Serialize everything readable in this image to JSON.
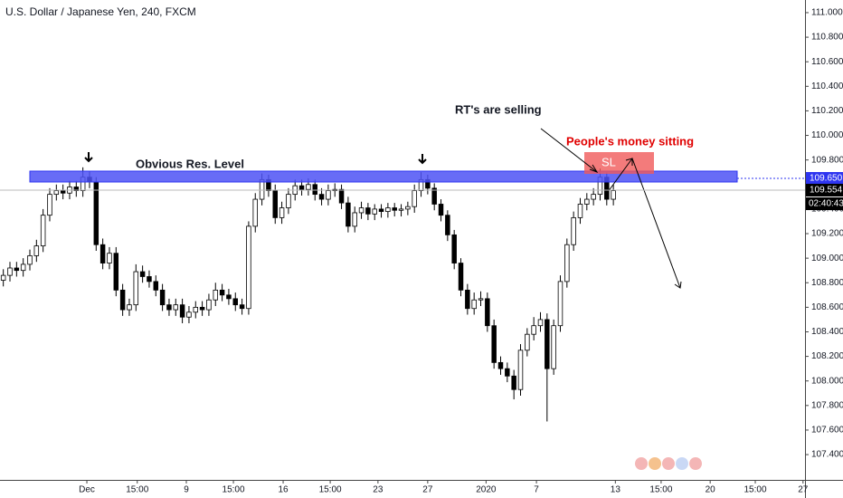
{
  "chart_data": {
    "type": "candlestick",
    "title": "U.S. Dollar / Japanese Yen, 240, FXCM",
    "x": [
      0,
      1,
      2,
      3,
      4,
      5,
      6,
      7,
      8,
      9,
      10,
      11,
      12,
      13,
      14,
      15,
      16,
      17,
      18,
      19,
      20,
      21,
      22,
      23,
      24,
      25,
      26,
      27,
      28,
      29,
      30,
      31,
      32,
      33,
      34,
      35,
      36,
      37,
      38,
      39,
      40,
      41,
      42,
      43,
      44,
      45,
      46,
      47,
      48,
      49,
      50,
      51,
      52,
      53,
      54,
      55,
      56,
      57,
      58,
      59,
      60,
      61,
      62,
      63,
      64,
      65,
      66,
      67,
      68,
      69,
      70,
      71,
      72,
      73,
      74,
      75,
      76,
      77,
      78,
      79,
      80,
      81,
      82,
      83,
      84,
      85,
      86,
      87,
      88,
      89,
      90,
      91,
      92
    ],
    "open": [
      108.82,
      108.86,
      108.92,
      108.9,
      108.95,
      109.02,
      109.1,
      109.35,
      109.52,
      109.55,
      109.53,
      109.58,
      109.55,
      109.66,
      109.62,
      109.11,
      108.96,
      109.04,
      108.74,
      108.58,
      108.62,
      108.89,
      108.85,
      108.81,
      108.74,
      108.62,
      108.58,
      108.62,
      108.52,
      108.56,
      108.6,
      108.58,
      108.66,
      108.74,
      108.7,
      108.67,
      108.62,
      108.59,
      109.26,
      109.48,
      109.64,
      109.55,
      109.33,
      109.41,
      109.52,
      109.59,
      109.56,
      109.6,
      109.52,
      109.48,
      109.55,
      109.56,
      109.45,
      109.26,
      109.37,
      109.41,
      109.36,
      109.4,
      109.38,
      109.41,
      109.39,
      109.4,
      109.42,
      109.55,
      109.64,
      109.57,
      109.44,
      109.35,
      109.19,
      108.96,
      108.74,
      108.59,
      108.66,
      108.67,
      108.45,
      108.15,
      108.1,
      108.04,
      107.93,
      108.25,
      108.38,
      108.45,
      108.5,
      108.1,
      108.45,
      108.81,
      109.11,
      109.33,
      109.44,
      109.48,
      109.52,
      109.66,
      109.48
    ],
    "high": [
      108.91,
      108.97,
      108.97,
      109.0,
      109.07,
      109.15,
      109.4,
      109.57,
      109.6,
      109.6,
      109.63,
      109.63,
      109.74,
      109.71,
      109.66,
      109.16,
      109.09,
      109.09,
      108.79,
      108.67,
      108.95,
      108.94,
      108.9,
      108.86,
      108.79,
      108.67,
      108.67,
      108.67,
      108.61,
      108.65,
      108.65,
      108.71,
      108.8,
      108.79,
      108.75,
      108.72,
      108.67,
      109.3,
      109.53,
      109.69,
      109.68,
      109.6,
      109.46,
      109.57,
      109.64,
      109.64,
      109.65,
      109.64,
      109.57,
      109.6,
      109.61,
      109.6,
      109.5,
      109.42,
      109.46,
      109.45,
      109.44,
      109.44,
      109.45,
      109.45,
      109.44,
      109.46,
      109.6,
      109.7,
      109.68,
      109.61,
      109.48,
      109.39,
      109.23,
      109.0,
      108.79,
      108.72,
      108.73,
      108.72,
      108.5,
      108.2,
      108.15,
      108.09,
      108.3,
      108.43,
      108.52,
      108.56,
      108.55,
      108.5,
      108.86,
      109.16,
      109.38,
      109.49,
      109.53,
      109.57,
      109.73,
      109.7,
      109.6
    ],
    "low": [
      108.77,
      108.81,
      108.85,
      108.85,
      108.9,
      108.97,
      109.05,
      109.3,
      109.47,
      109.48,
      109.48,
      109.5,
      109.5,
      109.57,
      109.06,
      108.91,
      108.91,
      108.69,
      108.53,
      108.53,
      108.57,
      108.8,
      108.76,
      108.69,
      108.57,
      108.53,
      108.53,
      108.47,
      108.47,
      108.51,
      108.53,
      108.53,
      108.61,
      108.65,
      108.62,
      108.57,
      108.54,
      108.54,
      109.21,
      109.43,
      109.5,
      109.28,
      109.28,
      109.36,
      109.47,
      109.51,
      109.51,
      109.47,
      109.43,
      109.43,
      109.5,
      109.4,
      109.21,
      109.21,
      109.32,
      109.31,
      109.31,
      109.33,
      109.33,
      109.34,
      109.34,
      109.35,
      109.37,
      109.5,
      109.52,
      109.39,
      109.3,
      109.14,
      108.91,
      108.69,
      108.54,
      108.54,
      108.61,
      108.4,
      108.1,
      108.05,
      107.99,
      107.85,
      107.88,
      108.2,
      108.33,
      108.4,
      107.67,
      108.05,
      108.4,
      108.76,
      109.06,
      109.28,
      109.39,
      109.43,
      109.47,
      109.43,
      109.43
    ],
    "close": [
      108.86,
      108.92,
      108.9,
      108.95,
      109.02,
      109.1,
      109.35,
      109.52,
      109.55,
      109.53,
      109.58,
      109.55,
      109.66,
      109.62,
      109.11,
      108.96,
      109.04,
      108.74,
      108.58,
      108.62,
      108.89,
      108.85,
      108.81,
      108.74,
      108.62,
      108.58,
      108.62,
      108.52,
      108.56,
      108.6,
      108.58,
      108.66,
      108.74,
      108.7,
      108.67,
      108.62,
      108.59,
      109.26,
      109.48,
      109.64,
      109.55,
      109.33,
      109.41,
      109.52,
      109.59,
      109.56,
      109.6,
      109.52,
      109.48,
      109.55,
      109.56,
      109.45,
      109.26,
      109.37,
      109.41,
      109.36,
      109.4,
      109.38,
      109.41,
      109.39,
      109.4,
      109.42,
      109.55,
      109.64,
      109.57,
      109.44,
      109.35,
      109.19,
      108.96,
      108.74,
      108.59,
      108.66,
      108.67,
      108.45,
      108.15,
      108.1,
      108.04,
      107.93,
      108.25,
      108.38,
      108.45,
      108.5,
      108.1,
      108.45,
      108.81,
      109.11,
      109.33,
      109.44,
      109.48,
      109.52,
      109.66,
      109.48,
      109.55
    ],
    "up_color": "#ffffff",
    "down_color": "#000000",
    "xlim": [
      -0.5,
      120.9
    ],
    "xticks": [
      {
        "value": 12.6,
        "label": "Dec"
      },
      {
        "value": 20.2,
        "label": "15:00"
      },
      {
        "value": 27.6,
        "label": "9"
      },
      {
        "value": 34.7,
        "label": "15:00"
      },
      {
        "value": 42.2,
        "label": "16"
      },
      {
        "value": 49.3,
        "label": "15:00"
      },
      {
        "value": 56.5,
        "label": "23"
      },
      {
        "value": 64.0,
        "label": "27"
      },
      {
        "value": 72.8,
        "label": "2020"
      },
      {
        "value": 80.4,
        "label": "7"
      },
      {
        "value": 92.3,
        "label": "13"
      },
      {
        "value": 99.2,
        "label": "15:00"
      },
      {
        "value": 106.6,
        "label": "20"
      },
      {
        "value": 113.4,
        "label": "15:00"
      },
      {
        "value": 120.6,
        "label": "27"
      }
    ],
    "ylim": [
      107.194,
      111.103
    ],
    "yticks": [
      {
        "value": 111,
        "label": "111.000"
      },
      {
        "value": 110.8,
        "label": "110.800"
      },
      {
        "value": 110.6,
        "label": "110.600"
      },
      {
        "value": 110.4,
        "label": "110.400"
      },
      {
        "value": 110.2,
        "label": "110.200"
      },
      {
        "value": 110,
        "label": "110.000"
      },
      {
        "value": 109.8,
        "label": "109.800"
      },
      {
        "value": 109.6,
        "label": "109.600"
      },
      {
        "value": 109.4,
        "label": "109.400"
      },
      {
        "value": 109.2,
        "label": "109.200"
      },
      {
        "value": 109,
        "label": "109.000"
      },
      {
        "value": 108.8,
        "label": "108.800"
      },
      {
        "value": 108.6,
        "label": "108.600"
      },
      {
        "value": 108.4,
        "label": "108.400"
      },
      {
        "value": 108.2,
        "label": "108.200"
      },
      {
        "value": 108,
        "label": "108.000"
      },
      {
        "value": 107.8,
        "label": "107.800"
      },
      {
        "value": 107.6,
        "label": "107.600"
      },
      {
        "value": 107.4,
        "label": "107.400"
      }
    ],
    "resistance": {
      "label": "Obvious Res. Level",
      "value": 109.65,
      "value_label": "109.650",
      "color": "#2e35f0"
    },
    "last_price": {
      "value": 109.554,
      "label": "109.554",
      "countdown": "02:40:43"
    },
    "annotations": {
      "sellers": "RT's are selling",
      "money": "People's money sitting",
      "stop": "SL"
    }
  }
}
